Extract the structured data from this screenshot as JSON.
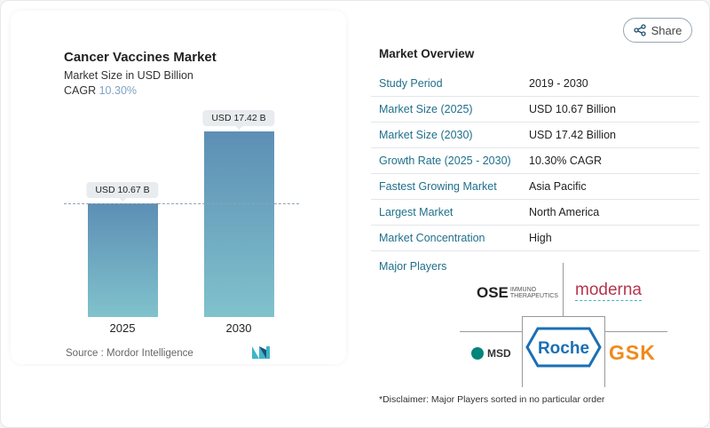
{
  "share": {
    "label": "Share",
    "icon": "share-icon"
  },
  "chart_card": {
    "title": "Cancer Vaccines Market",
    "subtitle": "Market Size in USD Billion",
    "cagr_label": "CAGR",
    "cagr_value": "10.30%",
    "source": "Source :  Mordor Intelligence"
  },
  "chart_data": {
    "type": "bar",
    "categories": [
      "2025",
      "2030"
    ],
    "values": [
      10.67,
      17.42
    ],
    "data_labels": [
      "USD 10.67 B",
      "USD 17.42 B"
    ],
    "title": "Cancer Vaccines Market",
    "ylabel": "Market Size in USD Billion",
    "colors": {
      "top": "#5d8fb5",
      "bottom": "#80c2cc"
    }
  },
  "overview": {
    "title": "Market Overview",
    "rows": [
      {
        "label": "Study Period",
        "value": "2019 - 2030"
      },
      {
        "label": "Market Size (2025)",
        "value": "USD 10.67 Billion"
      },
      {
        "label": "Market Size (2030)",
        "value": "USD 17.42 Billion"
      },
      {
        "label": "Growth Rate (2025 - 2030)",
        "value": "10.30% CAGR"
      },
      {
        "label": "Fastest Growing Market",
        "value": "Asia Pacific"
      },
      {
        "label": "Largest Market",
        "value": "North America"
      },
      {
        "label": "Market Concentration",
        "value": "High"
      }
    ]
  },
  "players": {
    "title": "Major Players",
    "logos": [
      "OSE IMMUNO THERAPEUTICS",
      "moderna",
      "MSD",
      "Roche",
      "GSK"
    ]
  },
  "disclaimer": "*Disclaimer: Major Players sorted in no particular order"
}
